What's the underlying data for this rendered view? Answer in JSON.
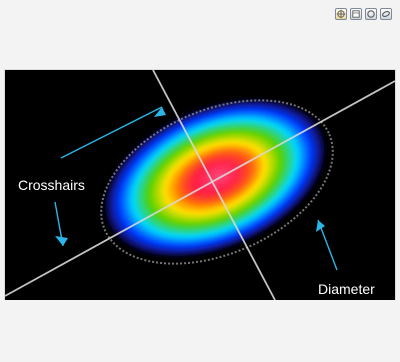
{
  "toolbar": {
    "buttons": [
      {
        "name": "crosshair-tool-icon",
        "active": true
      },
      {
        "name": "panel-tool-icon",
        "active": false
      },
      {
        "name": "circle-tool-icon",
        "active": false
      },
      {
        "name": "ellipse-tool-icon",
        "active": false
      }
    ]
  },
  "viewer": {
    "labels": {
      "crosshairs": "Crosshairs",
      "diameter": "Diameter"
    }
  },
  "colors": {
    "background": "#f3f3f3",
    "arrow": "#29b6e8",
    "crosshair": "#d8d8d8",
    "diameter_ring": "#8a8a8a"
  }
}
